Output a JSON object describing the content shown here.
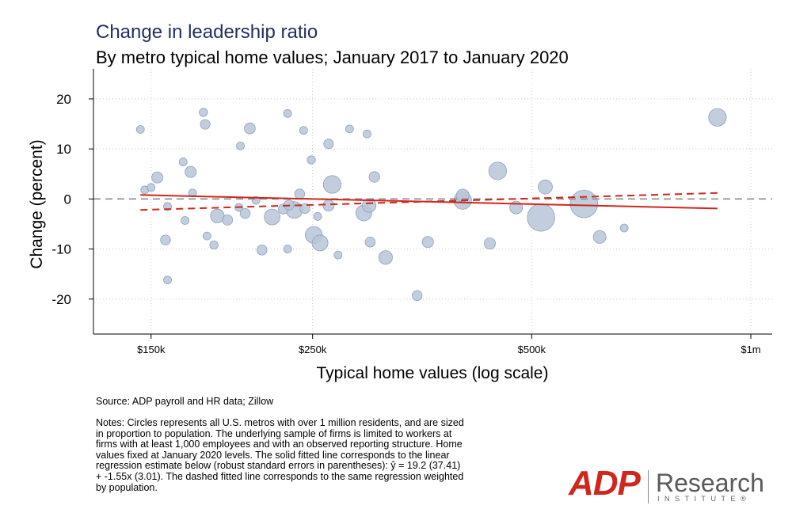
{
  "header": {
    "title": "Change in leadership ratio",
    "subtitle": "By metro typical home values; January 2017 to January 2020"
  },
  "footer": {
    "source": "Source: ADP payroll and HR data; Zillow",
    "notes": "Notes: Circles represents all U.S. metros with over 1 million residents, and are sized in proportion to population. The underlying sample of firms is limited to workers at firms with at least 1,000 employees and with an observed reporting structure. Home values fixed at January 2020 levels. The solid fitted line corresponds to the linear regression estimate below (robust standard errors in parentheses): ŷ = 19.2 (37.41) + -1.55x (3.01). The dashed fitted line corresponds to the same regression weighted by population."
  },
  "logo": {
    "brand": "ADP",
    "research": "Research",
    "institute": "INSTITUTE®"
  },
  "colors": {
    "title": "#1f2f5e",
    "bubble_fill": "#b7c6d8",
    "bubble_stroke": "#8ea2bd",
    "fit": "#d0271d",
    "zero_line": "#8c8c8c"
  },
  "chart_data": {
    "type": "scatter",
    "title": "Change in leadership ratio",
    "subtitle": "By metro typical home values; January 2017 to January 2020",
    "xlabel": "Typical home values (log scale)",
    "ylabel": "Change (percent)",
    "x_scale": "log",
    "xlim": [
      125000,
      1070000
    ],
    "ylim": [
      -27,
      26
    ],
    "x_ticks": [
      {
        "value": 150000,
        "label": "$150k"
      },
      {
        "value": 250000,
        "label": "$250k"
      },
      {
        "value": 500000,
        "label": "$500k"
      },
      {
        "value": 1000000,
        "label": "$1m"
      }
    ],
    "y_ticks": [
      {
        "value": 20,
        "label": "20"
      },
      {
        "value": 10,
        "label": "10"
      },
      {
        "value": 0,
        "label": "0"
      },
      {
        "value": -10,
        "label": "-10"
      },
      {
        "value": -20,
        "label": "-20"
      }
    ],
    "grid": true,
    "reference_line": {
      "y": 0,
      "style": "dashed"
    },
    "points": [
      {
        "x": 145000,
        "y": 13.9,
        "size": 1.0
      },
      {
        "x": 147000,
        "y": 1.8,
        "size": 1.0
      },
      {
        "x": 150000,
        "y": 2.3,
        "size": 1.0
      },
      {
        "x": 153000,
        "y": 4.3,
        "size": 2.0
      },
      {
        "x": 157000,
        "y": -8.2,
        "size": 1.6
      },
      {
        "x": 158000,
        "y": -16.2,
        "size": 1.0
      },
      {
        "x": 158000,
        "y": -1.5,
        "size": 1.0
      },
      {
        "x": 166000,
        "y": 7.4,
        "size": 1.0
      },
      {
        "x": 167000,
        "y": -4.3,
        "size": 1.0
      },
      {
        "x": 170000,
        "y": 5.4,
        "size": 2.0
      },
      {
        "x": 171000,
        "y": 1.2,
        "size": 1.0
      },
      {
        "x": 177000,
        "y": 17.3,
        "size": 1.1
      },
      {
        "x": 178000,
        "y": 14.9,
        "size": 1.5
      },
      {
        "x": 179000,
        "y": -7.4,
        "size": 1.0
      },
      {
        "x": 183000,
        "y": -9.2,
        "size": 1.1
      },
      {
        "x": 185000,
        "y": -3.4,
        "size": 3.0
      },
      {
        "x": 191000,
        "y": -4.2,
        "size": 1.7
      },
      {
        "x": 199000,
        "y": 10.6,
        "size": 1.0
      },
      {
        "x": 198000,
        "y": -1.7,
        "size": 1.0
      },
      {
        "x": 202000,
        "y": -2.9,
        "size": 1.6
      },
      {
        "x": 205000,
        "y": 14.1,
        "size": 1.9
      },
      {
        "x": 209000,
        "y": -0.3,
        "size": 1.0
      },
      {
        "x": 213000,
        "y": -10.2,
        "size": 1.6
      },
      {
        "x": 220000,
        "y": -3.6,
        "size": 4.0
      },
      {
        "x": 228000,
        "y": -2.0,
        "size": 1.6
      },
      {
        "x": 231000,
        "y": 17.1,
        "size": 1.0
      },
      {
        "x": 231000,
        "y": -10.0,
        "size": 1.0
      },
      {
        "x": 232000,
        "y": -1.2,
        "size": 1.6
      },
      {
        "x": 236000,
        "y": -2.2,
        "size": 4.4
      },
      {
        "x": 240000,
        "y": 1.0,
        "size": 1.6
      },
      {
        "x": 243000,
        "y": 13.7,
        "size": 1.0
      },
      {
        "x": 244000,
        "y": -1.9,
        "size": 1.6
      },
      {
        "x": 249000,
        "y": 7.8,
        "size": 1.1
      },
      {
        "x": 251000,
        "y": -7.2,
        "size": 4.6
      },
      {
        "x": 254000,
        "y": -3.5,
        "size": 1.0
      },
      {
        "x": 256000,
        "y": -8.8,
        "size": 4.0
      },
      {
        "x": 263000,
        "y": 11.0,
        "size": 1.5
      },
      {
        "x": 263000,
        "y": -1.3,
        "size": 2.0
      },
      {
        "x": 266000,
        "y": 2.9,
        "size": 5.0
      },
      {
        "x": 271000,
        "y": -11.2,
        "size": 1.0
      },
      {
        "x": 281000,
        "y": 14.0,
        "size": 1.0
      },
      {
        "x": 294000,
        "y": -2.8,
        "size": 4.0
      },
      {
        "x": 297000,
        "y": 13.0,
        "size": 1.0
      },
      {
        "x": 299000,
        "y": -1.3,
        "size": 3.0
      },
      {
        "x": 300000,
        "y": -8.6,
        "size": 1.6
      },
      {
        "x": 304000,
        "y": 4.4,
        "size": 1.8
      },
      {
        "x": 315000,
        "y": -11.7,
        "size": 3.0
      },
      {
        "x": 348000,
        "y": -19.3,
        "size": 1.6
      },
      {
        "x": 360000,
        "y": -8.6,
        "size": 2.0
      },
      {
        "x": 402000,
        "y": 0.7,
        "size": 2.6
      },
      {
        "x": 402000,
        "y": -0.3,
        "size": 5.0
      },
      {
        "x": 438000,
        "y": -8.9,
        "size": 2.0
      },
      {
        "x": 449000,
        "y": 5.6,
        "size": 5.0
      },
      {
        "x": 476000,
        "y": -1.7,
        "size": 2.6
      },
      {
        "x": 515000,
        "y": -3.7,
        "size": 12.0
      },
      {
        "x": 522000,
        "y": 2.4,
        "size": 3.2
      },
      {
        "x": 590000,
        "y": -1.0,
        "size": 12.0
      },
      {
        "x": 620000,
        "y": -7.6,
        "size": 2.6
      },
      {
        "x": 670000,
        "y": -5.8,
        "size": 1.0
      },
      {
        "x": 900000,
        "y": 16.3,
        "size": 5.0
      }
    ],
    "fits": [
      {
        "name": "Unweighted linear fit",
        "style": "solid",
        "x": [
          145000,
          900000
        ],
        "y": [
          0.8,
          -1.9
        ]
      },
      {
        "name": "Population-weighted linear fit",
        "style": "dashed",
        "x": [
          145000,
          900000
        ],
        "y": [
          -2.2,
          1.2
        ]
      }
    ]
  }
}
